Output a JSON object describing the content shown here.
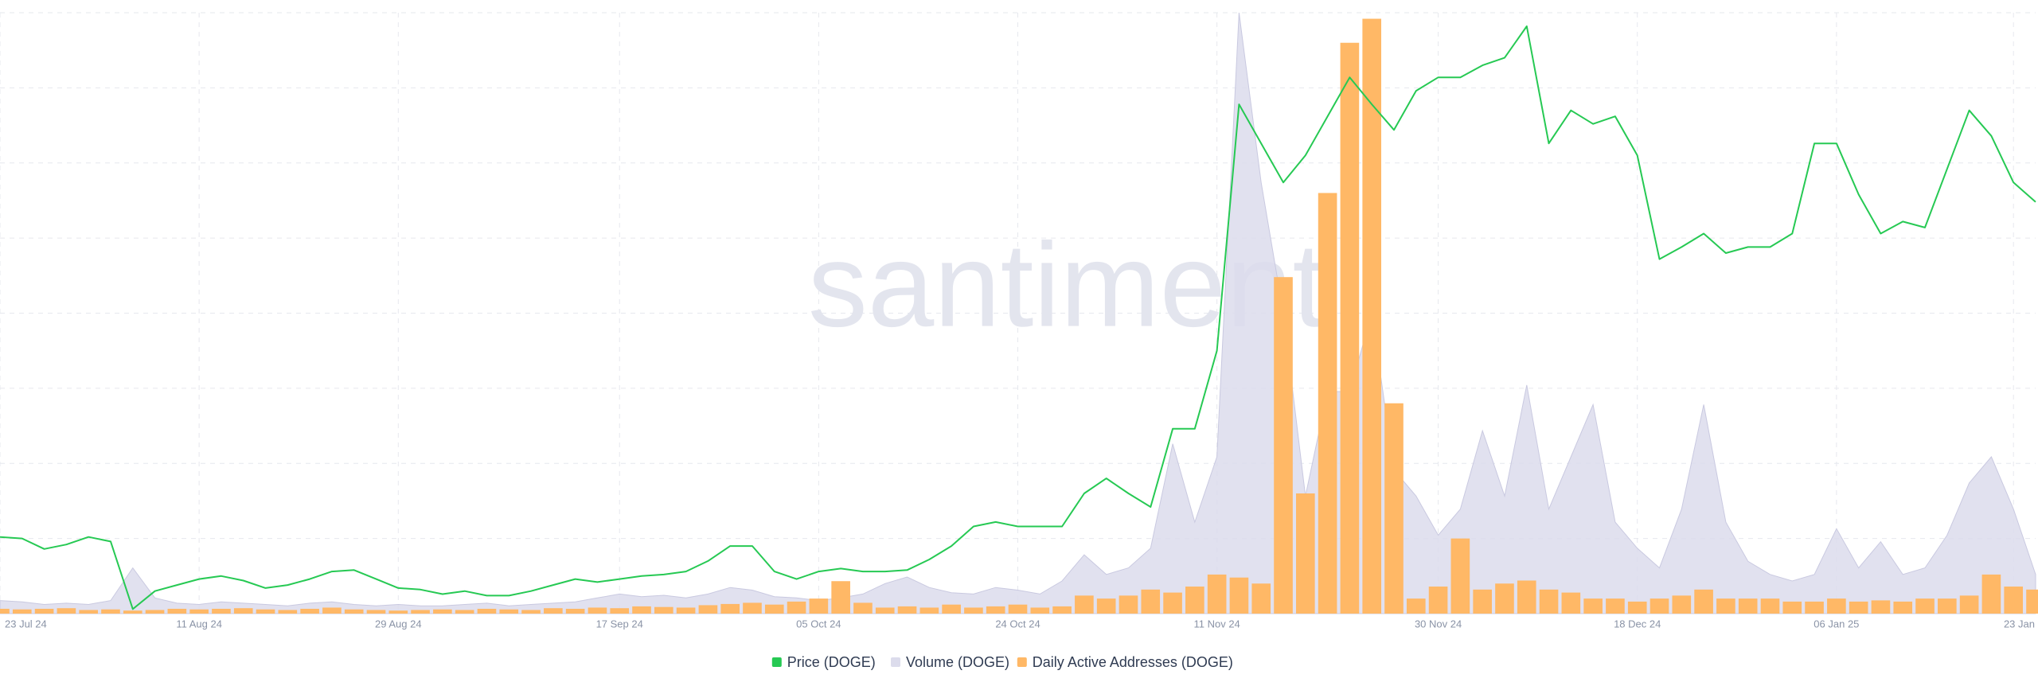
{
  "watermark": "santiment",
  "chart_data": {
    "type": "multi",
    "categories": [
      "23 Jul 24",
      null,
      null,
      null,
      null,
      null,
      null,
      null,
      null,
      "11 Aug 24",
      null,
      null,
      null,
      null,
      null,
      null,
      null,
      null,
      "29 Aug 24",
      null,
      null,
      null,
      null,
      null,
      null,
      null,
      null,
      null,
      "17 Sep 24",
      null,
      null,
      null,
      null,
      null,
      null,
      null,
      null,
      "05 Oct 24",
      null,
      null,
      null,
      null,
      null,
      null,
      null,
      null,
      "24 Oct 24",
      null,
      null,
      null,
      null,
      null,
      null,
      null,
      null,
      "11 Nov 24",
      null,
      null,
      null,
      null,
      null,
      null,
      null,
      null,
      null,
      "30 Nov 24",
      null,
      null,
      null,
      null,
      null,
      null,
      null,
      null,
      "18 Dec 24",
      null,
      null,
      null,
      null,
      null,
      null,
      null,
      null,
      "06 Jan 25",
      null,
      null,
      null,
      null,
      null,
      null,
      null,
      "23 Jan",
      null
    ],
    "grid": true,
    "legend": "bottom",
    "series": [
      {
        "name": "Price (DOGE)",
        "type": "line",
        "color": "#26c953",
        "ylim": [
          0.08,
          0.48
        ],
        "values": [
          0.131,
          0.13,
          0.123,
          0.126,
          0.131,
          0.128,
          0.083,
          0.095,
          0.099,
          0.103,
          0.105,
          0.102,
          0.097,
          0.099,
          0.103,
          0.108,
          0.109,
          0.103,
          0.097,
          0.096,
          0.093,
          0.095,
          0.092,
          0.092,
          0.095,
          0.099,
          0.103,
          0.101,
          0.103,
          0.105,
          0.106,
          0.108,
          0.115,
          0.125,
          0.125,
          0.108,
          0.103,
          0.108,
          0.11,
          0.108,
          0.108,
          0.109,
          0.116,
          0.125,
          0.138,
          0.141,
          0.138,
          0.138,
          0.138,
          0.16,
          0.17,
          0.16,
          0.151,
          0.203,
          0.203,
          0.255,
          0.419,
          0.393,
          0.367,
          0.385,
          0.411,
          0.437,
          0.419,
          0.402,
          0.428,
          0.437,
          0.437,
          0.445,
          0.45,
          0.471,
          0.393,
          0.415,
          0.406,
          0.411,
          0.385,
          0.316,
          0.324,
          0.333,
          0.32,
          0.324,
          0.324,
          0.333,
          0.393,
          0.393,
          0.359,
          0.333,
          0.341,
          0.337,
          0.376,
          0.415,
          0.398,
          0.367,
          0.354
        ]
      },
      {
        "name": "Volume (DOGE)",
        "type": "area",
        "color": "#dcdcec",
        "ylim": [
          0,
          46
        ],
        "values": [
          1.0,
          0.9,
          0.7,
          0.8,
          0.7,
          1.0,
          3.5,
          1.2,
          0.8,
          0.7,
          0.9,
          0.8,
          0.7,
          0.6,
          0.8,
          0.9,
          0.7,
          0.6,
          0.7,
          0.6,
          0.6,
          0.7,
          0.8,
          0.6,
          0.7,
          0.8,
          0.9,
          1.2,
          1.5,
          1.3,
          1.4,
          1.2,
          1.5,
          2.0,
          1.8,
          1.3,
          1.2,
          1.0,
          1.2,
          1.5,
          2.3,
          2.8,
          2.0,
          1.6,
          1.5,
          2.0,
          1.8,
          1.5,
          2.5,
          4.5,
          3.0,
          3.5,
          5.0,
          13.0,
          7.0,
          12.0,
          46.0,
          33.0,
          23.0,
          9.0,
          17.0,
          17.0,
          23.0,
          11.0,
          9.0,
          6.0,
          8.0,
          14.0,
          9.0,
          17.5,
          8.0,
          12.0,
          16.0,
          7.0,
          5.0,
          3.5,
          8.0,
          16.0,
          7.0,
          4.0,
          3.0,
          2.5,
          3.0,
          6.5,
          3.5,
          5.5,
          3.0,
          3.5,
          6.0,
          10.0,
          12.0,
          8.0,
          3.0
        ]
      },
      {
        "name": "Daily Active Addresses (DOGE)",
        "type": "bar",
        "color": "#ffb866",
        "ylim": [
          0,
          1000
        ],
        "values": [
          8,
          7,
          8,
          9,
          6,
          7,
          5,
          6,
          8,
          7,
          8,
          9,
          7,
          6,
          8,
          10,
          7,
          6,
          5,
          6,
          7,
          6,
          8,
          7,
          6,
          9,
          8,
          10,
          9,
          12,
          11,
          10,
          14,
          16,
          18,
          15,
          20,
          25,
          54,
          18,
          10,
          12,
          10,
          15,
          10,
          12,
          15,
          10,
          12,
          30,
          25,
          30,
          40,
          35,
          45,
          65,
          60,
          50,
          560,
          200,
          700,
          950,
          990,
          350,
          25,
          45,
          125,
          40,
          50,
          55,
          40,
          35,
          25,
          25,
          20,
          25,
          30,
          40,
          25,
          25,
          25,
          20,
          20,
          25,
          20,
          22,
          20,
          25,
          25,
          30,
          65,
          45,
          40
        ]
      }
    ]
  }
}
